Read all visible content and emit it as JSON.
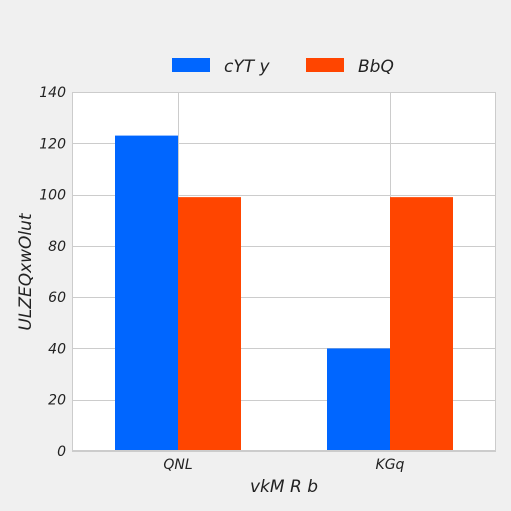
{
  "chart_data": {
    "type": "bar",
    "title": "",
    "xlabel": "vkM  R b",
    "ylabel": "ULZEQxwOlut",
    "categories": [
      "QNL",
      "KGq"
    ],
    "series": [
      {
        "name": "cYT y",
        "color": "#0066ff",
        "values": [
          123,
          40
        ]
      },
      {
        "name": "BbQ",
        "color": "#ff4500",
        "values": [
          99,
          99
        ]
      }
    ],
    "ylim": [
      0,
      140
    ],
    "yticks": [
      0,
      20,
      40,
      60,
      80,
      100,
      120,
      140
    ],
    "grid": true,
    "legend_position": "top"
  }
}
